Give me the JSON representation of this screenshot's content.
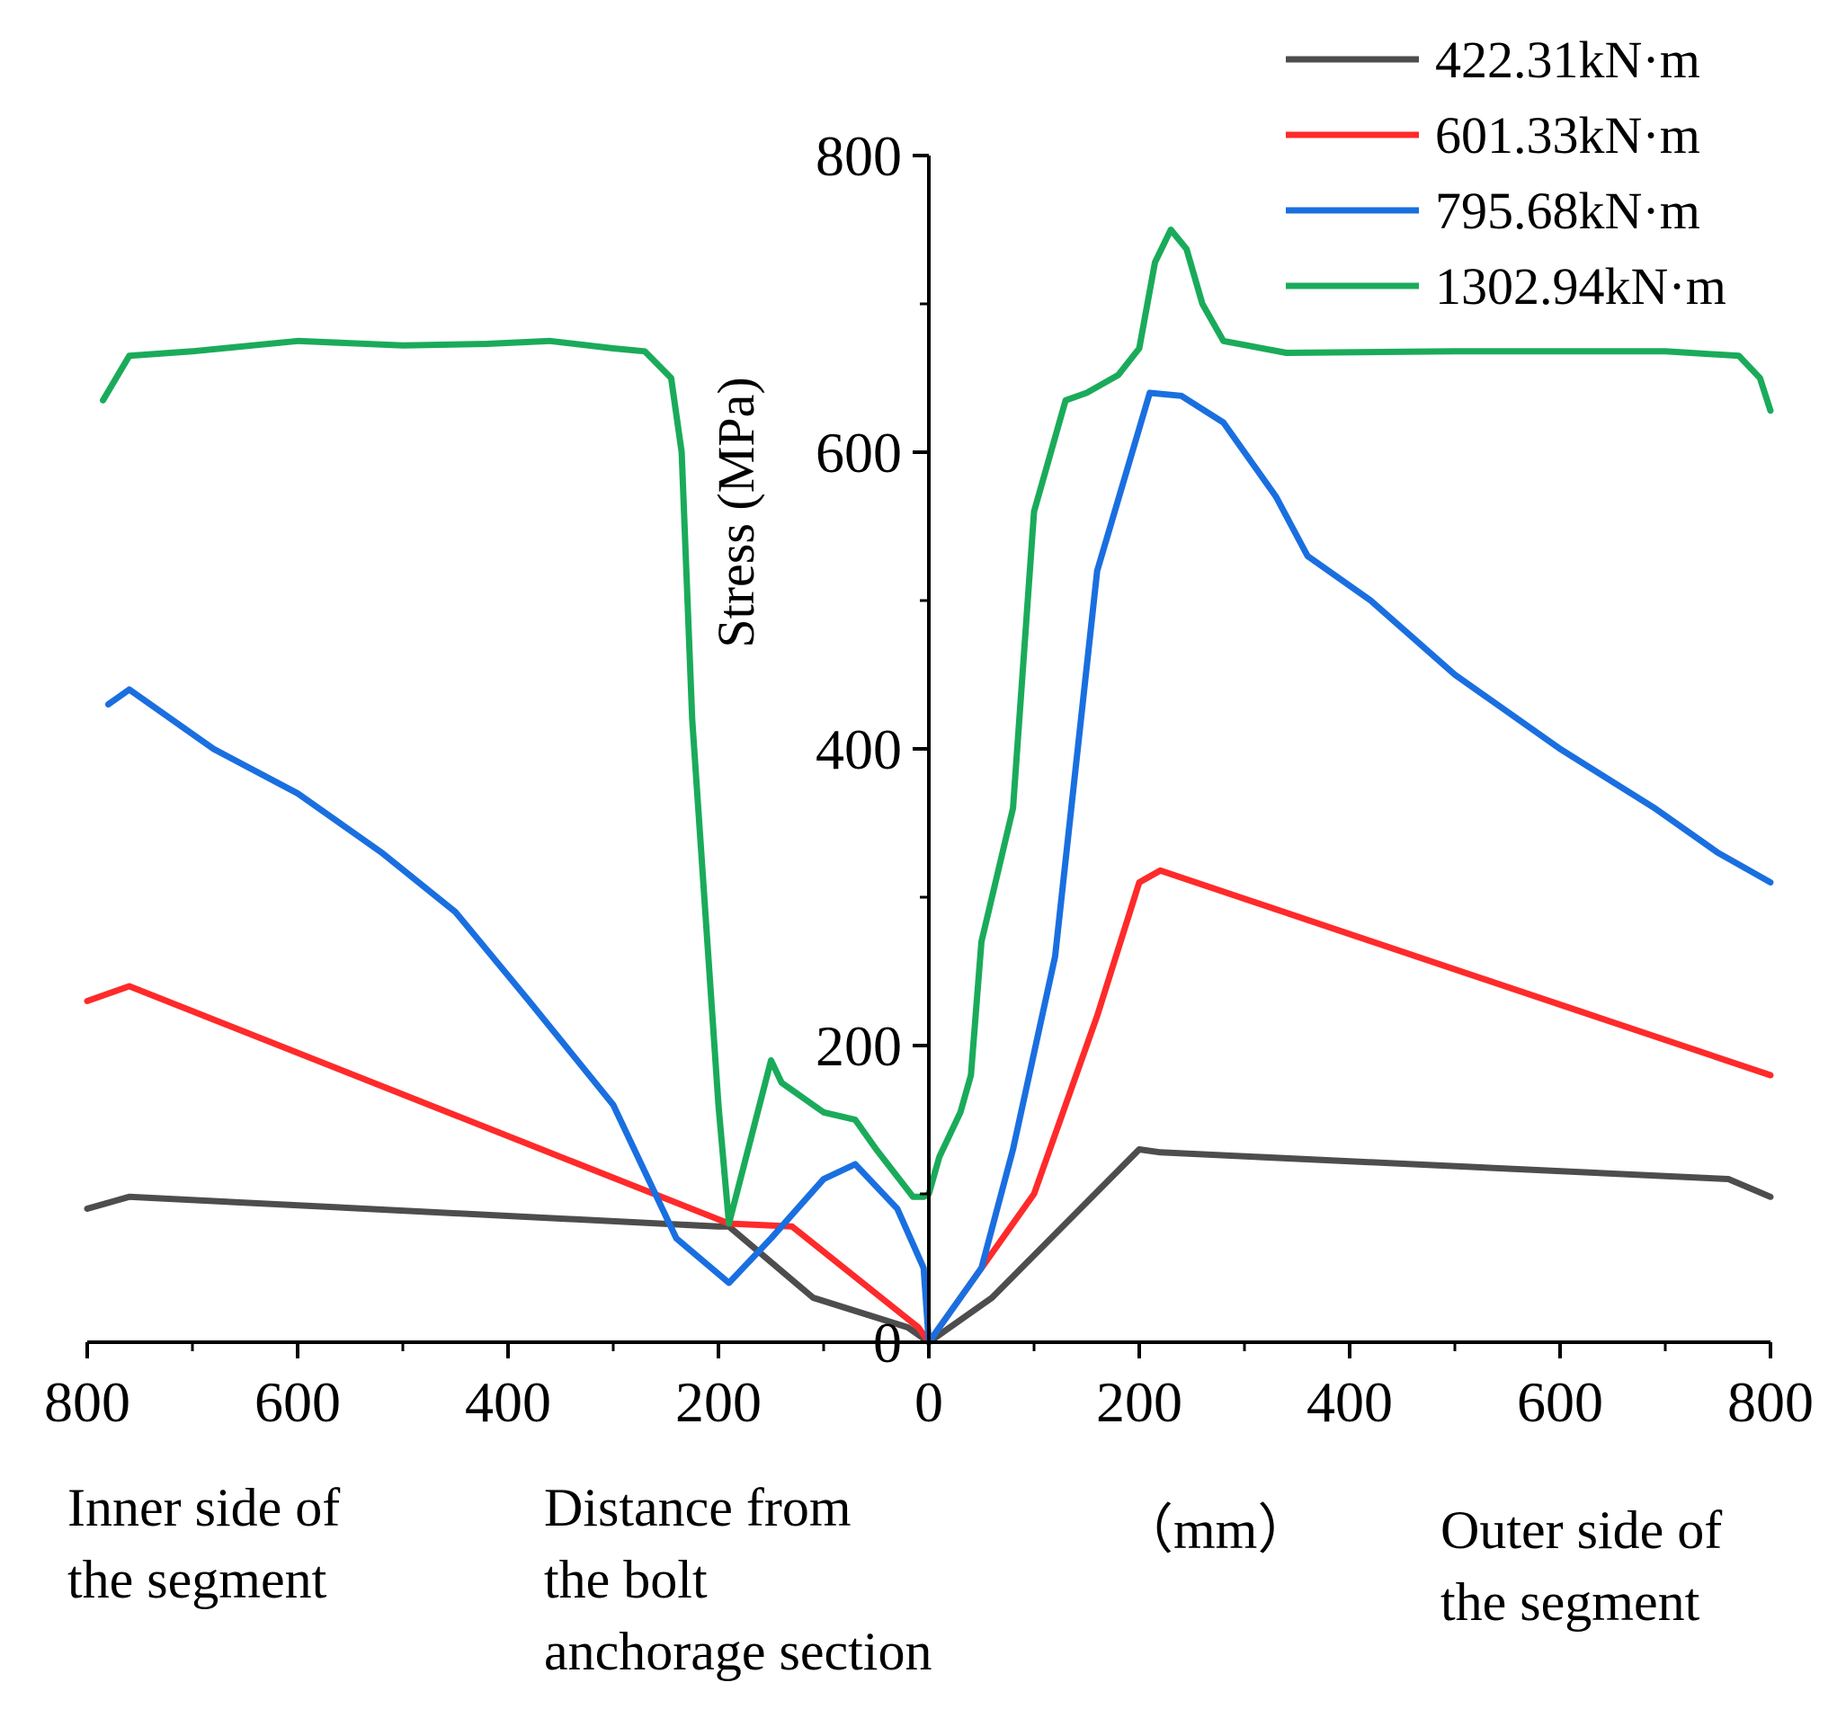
{
  "chart_data": {
    "type": "line",
    "title": "",
    "ylabel": "Stress (MPa)",
    "xlabel": "(mm)",
    "xlim": [
      -800,
      800
    ],
    "ylim": [
      0,
      800
    ],
    "x_ticks": [
      -800,
      -600,
      -400,
      -200,
      0,
      200,
      400,
      600,
      800
    ],
    "x_tick_labels": [
      "800",
      "600",
      "400",
      "200",
      "0",
      "200",
      "400",
      "600",
      "800"
    ],
    "y_ticks": [
      0,
      200,
      400,
      600,
      800
    ],
    "y_tick_labels": [
      "0",
      "200",
      "400",
      "600",
      "800"
    ],
    "grid": false,
    "legend_position": "top-right",
    "annotations": {
      "inner_side": [
        "Inner side of",
        "the segment"
      ],
      "distance": [
        "Distance from",
        "the bolt",
        "anchorage section"
      ],
      "unit": "（mm）",
      "outer_side": [
        "Outer side of",
        "the segment"
      ]
    },
    "series": [
      {
        "name": "422.31kN·m",
        "color": "#4d4d4d",
        "x": [
          -800,
          -760,
          -200,
          -190,
          -110,
          -20,
          0,
          60,
          200,
          220,
          760,
          800
        ],
        "y": [
          90,
          98,
          78,
          78,
          30,
          10,
          0,
          30,
          130,
          128,
          110,
          98
        ]
      },
      {
        "name": "601.33kN·m",
        "color": "#ff2a2a",
        "x": [
          -800,
          -760,
          -190,
          -130,
          -10,
          0,
          100,
          160,
          200,
          220,
          800
        ],
        "y": [
          230,
          240,
          80,
          78,
          10,
          0,
          100,
          220,
          310,
          318,
          180
        ]
      },
      {
        "name": "795.68kN·m",
        "color": "#1a6fe0",
        "x": [
          -780,
          -760,
          -680,
          -600,
          -520,
          -450,
          -380,
          -300,
          -240,
          -190,
          -150,
          -100,
          -70,
          -30,
          -5,
          0,
          50,
          80,
          120,
          160,
          210,
          240,
          280,
          330,
          360,
          420,
          500,
          600,
          690,
          750,
          800
        ],
        "y": [
          430,
          440,
          400,
          370,
          330,
          290,
          230,
          160,
          70,
          40,
          70,
          110,
          120,
          90,
          50,
          0,
          50,
          130,
          260,
          520,
          640,
          638,
          620,
          570,
          530,
          500,
          450,
          400,
          360,
          330,
          310
        ]
      },
      {
        "name": "1302.94kN·m",
        "color": "#1aab5a",
        "x": [
          -785,
          -760,
          -700,
          -600,
          -500,
          -420,
          -360,
          -300,
          -270,
          -245,
          -235,
          -225,
          -200,
          -190,
          -150,
          -140,
          -100,
          -70,
          -50,
          -15,
          -5,
          0,
          10,
          30,
          40,
          50,
          80,
          100,
          130,
          150,
          180,
          200,
          215,
          230,
          245,
          260,
          280,
          340,
          500,
          700,
          770,
          790,
          800
        ],
        "y": [
          635,
          665,
          668,
          675,
          672,
          673,
          675,
          670,
          668,
          650,
          600,
          420,
          160,
          80,
          190,
          175,
          155,
          150,
          130,
          98,
          98,
          100,
          125,
          155,
          180,
          270,
          360,
          560,
          635,
          640,
          652,
          670,
          728,
          750,
          737,
          700,
          675,
          667,
          668,
          668,
          665,
          650,
          628
        ]
      }
    ]
  }
}
